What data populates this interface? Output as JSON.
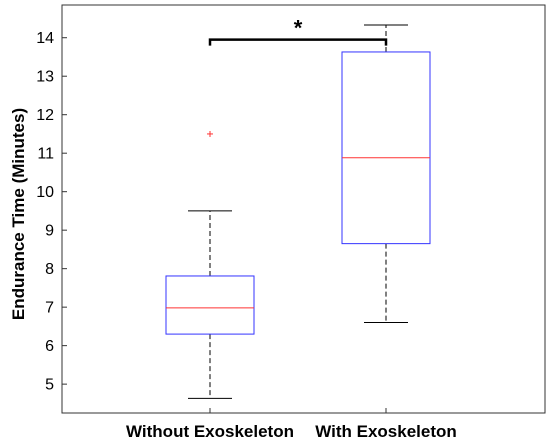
{
  "chart_data": {
    "type": "box",
    "ylabel": "Endurance Time (Minutes)",
    "xlabel": "",
    "ylim": [
      4.25,
      14.85
    ],
    "yticks": [
      5,
      6,
      7,
      8,
      9,
      10,
      11,
      12,
      13,
      14
    ],
    "grid": false,
    "categories": [
      "Without Exoskeleton",
      "With Exoskeleton"
    ],
    "boxes": [
      {
        "category": "Without Exoskeleton",
        "whisker_low": 4.63,
        "q1": 6.3,
        "median": 6.98,
        "q3": 7.81,
        "whisker_high": 9.5,
        "outliers": [
          11.5
        ]
      },
      {
        "category": "With Exoskeleton",
        "whisker_low": 6.6,
        "q1": 8.65,
        "median": 10.88,
        "q3": 13.63,
        "whisker_high": 14.33,
        "outliers": []
      }
    ],
    "significance": {
      "between": [
        "Without Exoskeleton",
        "With Exoskeleton"
      ],
      "label": "*",
      "y": 13.95
    },
    "colors": {
      "box": "#3333ff",
      "median": "#ff3333",
      "outlier": "#ff3333",
      "whisker": "#000000",
      "axes": "#333333"
    }
  }
}
